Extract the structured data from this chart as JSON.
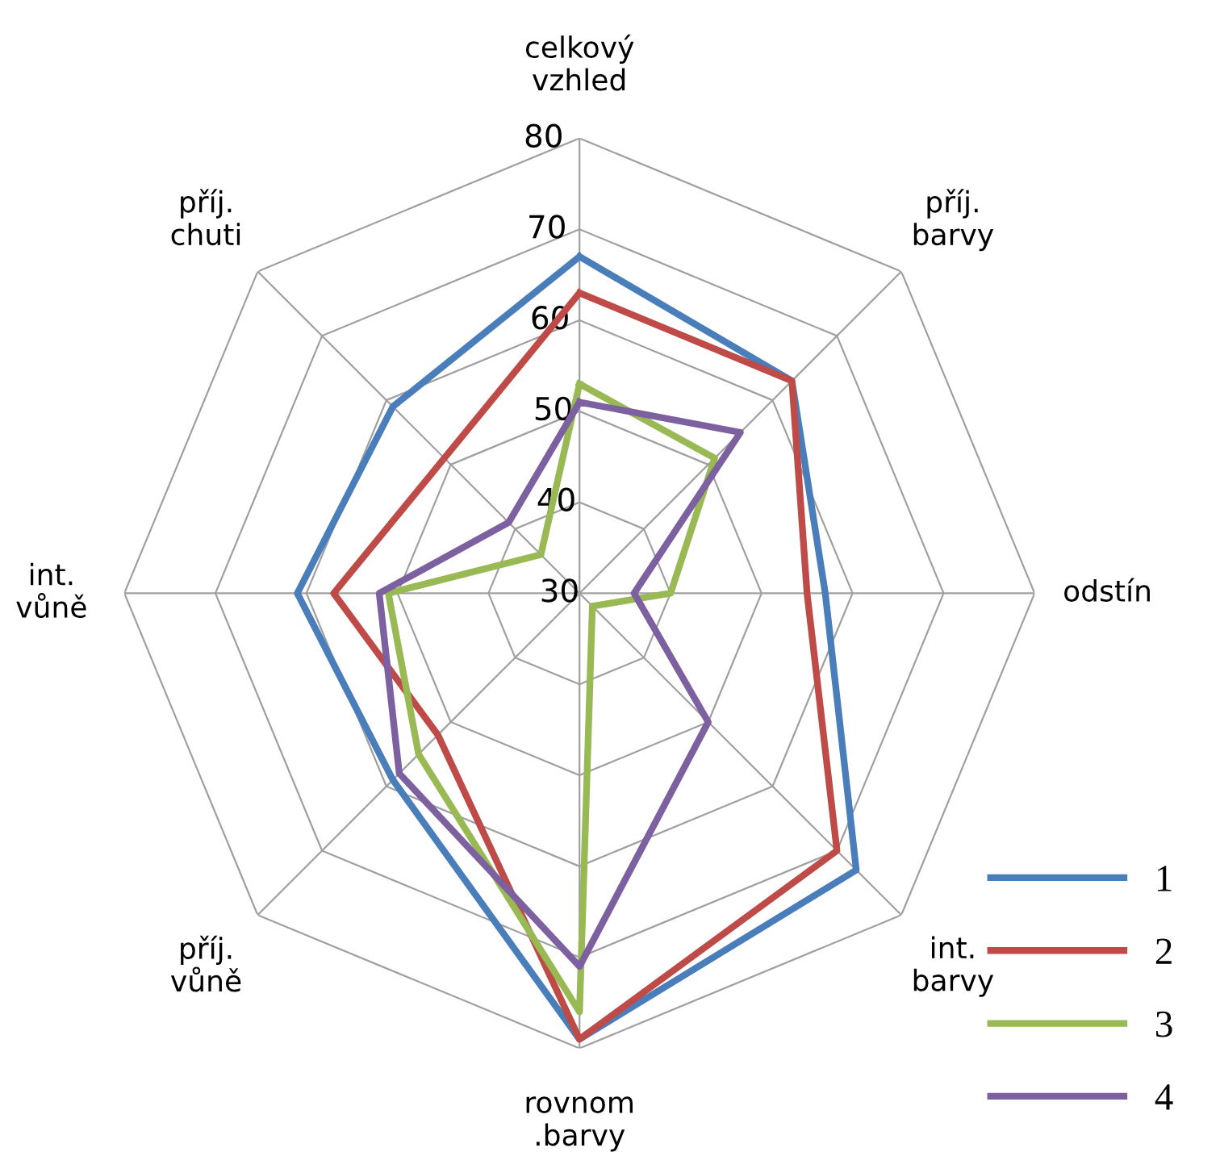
{
  "chart_data": {
    "type": "radar",
    "categories": [
      "celkový\nvzhled",
      "příj.\nbarvy",
      "odstín",
      "int.\nbarvy",
      "rovnom\n.barvy",
      "příj.\nvůně",
      "int.\nvůně",
      "příj.\nchuti"
    ],
    "ylim": [
      30,
      80
    ],
    "yticks": [
      30,
      40,
      50,
      60,
      70,
      80
    ],
    "grid": true,
    "legend": "bottom right",
    "series": [
      {
        "name": "1",
        "color": "#4a7ebb",
        "values": [
          67,
          63,
          57,
          73,
          79,
          59,
          61,
          59
        ]
      },
      {
        "name": "2",
        "color": "#be4b48",
        "values": [
          63,
          63,
          55,
          70,
          79,
          52,
          57,
          51
        ]
      },
      {
        "name": "3",
        "color": "#98b954",
        "values": [
          53,
          51,
          40,
          32,
          76,
          55,
          51,
          36
        ]
      },
      {
        "name": "4",
        "color": "#7d60a0",
        "values": [
          51,
          55,
          36,
          50,
          71,
          58,
          52,
          41
        ]
      }
    ]
  }
}
